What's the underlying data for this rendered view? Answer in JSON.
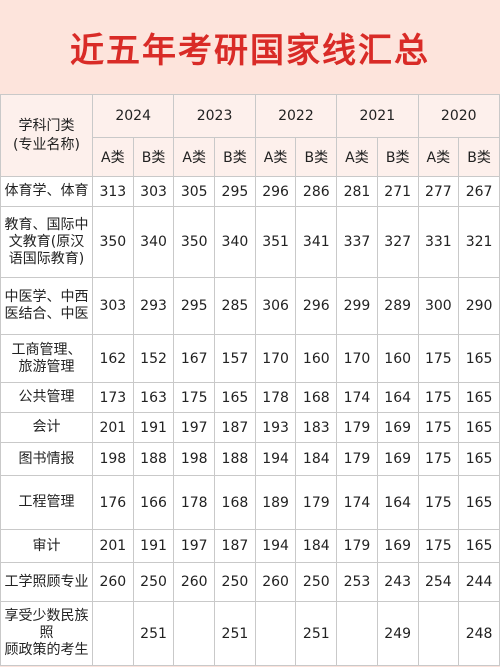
{
  "title": "近五年考研国家线汇总",
  "header": {
    "category_line1": "学科门类",
    "category_line2": "(专业名称)",
    "years": [
      "2024",
      "2023",
      "2022",
      "2021",
      "2020"
    ],
    "class_a": "A类",
    "class_b": "B类"
  },
  "rows": [
    {
      "cat": [
        "体育学、体育"
      ],
      "v": [
        "313",
        "303",
        "305",
        "295",
        "296",
        "286",
        "281",
        "271",
        "277",
        "267"
      ]
    },
    {
      "cat": [
        "教育、国际中",
        "文教育(原汉",
        "语国际教育)"
      ],
      "v": [
        "350",
        "340",
        "350",
        "340",
        "351",
        "341",
        "337",
        "327",
        "331",
        "321"
      ]
    },
    {
      "cat": [
        "中医学、中西",
        "医结合、中医"
      ],
      "v": [
        "303",
        "293",
        "295",
        "285",
        "306",
        "296",
        "299",
        "289",
        "300",
        "290"
      ]
    },
    {
      "cat": [
        "工商管理、",
        "旅游管理"
      ],
      "v": [
        "162",
        "152",
        "167",
        "157",
        "170",
        "160",
        "170",
        "160",
        "175",
        "165"
      ]
    },
    {
      "cat": [
        "公共管理"
      ],
      "v": [
        "173",
        "163",
        "175",
        "165",
        "178",
        "168",
        "174",
        "164",
        "175",
        "165"
      ]
    },
    {
      "cat": [
        "会计"
      ],
      "v": [
        "201",
        "191",
        "197",
        "187",
        "193",
        "183",
        "179",
        "169",
        "175",
        "165"
      ]
    },
    {
      "cat": [
        "图书情报"
      ],
      "v": [
        "198",
        "188",
        "198",
        "188",
        "194",
        "184",
        "179",
        "169",
        "175",
        "165"
      ]
    },
    {
      "cat": [
        "工程管理"
      ],
      "v": [
        "176",
        "166",
        "178",
        "168",
        "189",
        "179",
        "174",
        "164",
        "175",
        "165"
      ]
    },
    {
      "cat": [
        "审计"
      ],
      "v": [
        "201",
        "191",
        "197",
        "187",
        "194",
        "184",
        "179",
        "169",
        "175",
        "165"
      ]
    },
    {
      "cat": [
        "工学照顾专业"
      ],
      "v": [
        "260",
        "250",
        "260",
        "250",
        "260",
        "250",
        "253",
        "243",
        "254",
        "244"
      ]
    },
    {
      "cat": [
        "享受少数民族照",
        "顾政策的考生"
      ],
      "v": [
        "",
        "251",
        "",
        "251",
        "",
        "251",
        "",
        "249",
        "",
        "248"
      ]
    }
  ]
}
